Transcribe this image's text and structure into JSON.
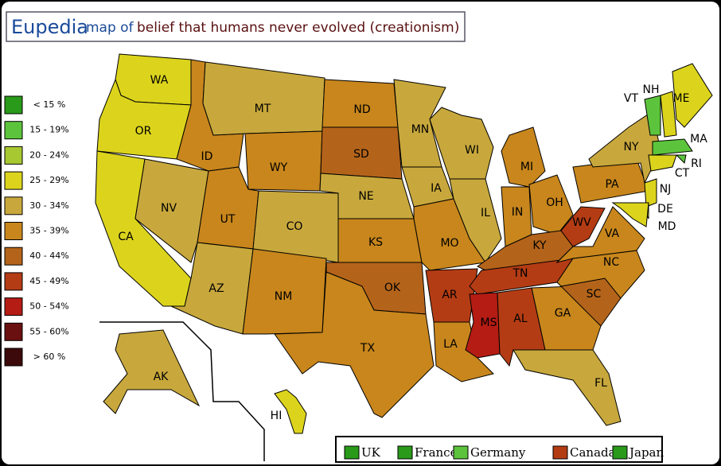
{
  "header": {
    "brand": "Eupedia",
    "title_part1": "map of",
    "title_part2": "belief that humans never evolved (creationism)"
  },
  "legend": [
    {
      "label": "< 15 %",
      "color": "#2a9a1a"
    },
    {
      "label": "15 - 19%",
      "color": "#5cc43c"
    },
    {
      "label": "20 - 24%",
      "color": "#a8c832"
    },
    {
      "label": "25 - 29%",
      "color": "#dcd41c"
    },
    {
      "label": "30 - 34%",
      "color": "#c8a83c"
    },
    {
      "label": "35 - 39%",
      "color": "#c8861c"
    },
    {
      "label": "40 - 44%",
      "color": "#b4641a"
    },
    {
      "label": "45 - 49%",
      "color": "#b43c14"
    },
    {
      "label": "50 - 54%",
      "color": "#b41c14"
    },
    {
      "label": "55 - 60%",
      "color": "#6a1010"
    },
    {
      "label": "> 60 %",
      "color": "#3c0a0a"
    }
  ],
  "states": [
    {
      "label": "WA",
      "color": "#dcd41c"
    },
    {
      "label": "OR",
      "color": "#dcd41c"
    },
    {
      "label": "CA",
      "color": "#dcd41c"
    },
    {
      "label": "NV",
      "color": "#c8a83c"
    },
    {
      "label": "ID",
      "color": "#c8861c"
    },
    {
      "label": "MT",
      "color": "#c8a83c"
    },
    {
      "label": "WY",
      "color": "#c8861c"
    },
    {
      "label": "UT",
      "color": "#c8861c"
    },
    {
      "label": "CO",
      "color": "#c8a83c"
    },
    {
      "label": "AZ",
      "color": "#c8a83c"
    },
    {
      "label": "NM",
      "color": "#c8861c"
    },
    {
      "label": "ND",
      "color": "#c8861c"
    },
    {
      "label": "SD",
      "color": "#b4641a"
    },
    {
      "label": "NE",
      "color": "#c8a83c"
    },
    {
      "label": "KS",
      "color": "#c8861c"
    },
    {
      "label": "OK",
      "color": "#b4641a"
    },
    {
      "label": "TX",
      "color": "#c8861c"
    },
    {
      "label": "MN",
      "color": "#c8a83c"
    },
    {
      "label": "IA",
      "color": "#c8a83c"
    },
    {
      "label": "MO",
      "color": "#c8861c"
    },
    {
      "label": "AR",
      "color": "#b43c14"
    },
    {
      "label": "LA",
      "color": "#c8861c"
    },
    {
      "label": "WI",
      "color": "#c8a83c"
    },
    {
      "label": "IL",
      "color": "#c8a83c"
    },
    {
      "label": "MI",
      "color": "#c8861c"
    },
    {
      "label": "IN",
      "color": "#c8861c"
    },
    {
      "label": "OH",
      "color": "#c8861c"
    },
    {
      "label": "KY",
      "color": "#b4641a"
    },
    {
      "label": "TN",
      "color": "#b43c14"
    },
    {
      "label": "MS",
      "color": "#b41c14"
    },
    {
      "label": "AL",
      "color": "#b43c14"
    },
    {
      "label": "GA",
      "color": "#c8861c"
    },
    {
      "label": "FL",
      "color": "#c8a83c"
    },
    {
      "label": "SC",
      "color": "#b4641a"
    },
    {
      "label": "NC",
      "color": "#c8861c"
    },
    {
      "label": "VA",
      "color": "#c8861c"
    },
    {
      "label": "WV",
      "color": "#b43c14"
    },
    {
      "label": "PA",
      "color": "#c8861c"
    },
    {
      "label": "NY",
      "color": "#c8a83c"
    },
    {
      "label": "VT",
      "color": "#5cc43c"
    },
    {
      "label": "NH",
      "color": "#dcd41c"
    },
    {
      "label": "ME",
      "color": "#dcd41c"
    },
    {
      "label": "MA",
      "color": "#5cc43c"
    },
    {
      "label": "RI",
      "color": "#5cc43c"
    },
    {
      "label": "CT",
      "color": "#dcd41c"
    },
    {
      "label": "NJ",
      "color": "#dcd41c"
    },
    {
      "label": "DE",
      "color": "#dcd41c"
    },
    {
      "label": "MD",
      "color": "#dcd41c"
    },
    {
      "label": "AK",
      "color": "#c8a83c"
    },
    {
      "label": "HI",
      "color": "#dcd41c"
    }
  ],
  "countries": [
    {
      "label": "UK",
      "color": "#2a9a1a"
    },
    {
      "label": "France",
      "color": "#2a9a1a"
    },
    {
      "label": "Germany",
      "color": "#5cc43c"
    },
    {
      "label": "Canada",
      "color": "#b43c14"
    },
    {
      "label": "Japan",
      "color": "#2a9a1a"
    }
  ]
}
